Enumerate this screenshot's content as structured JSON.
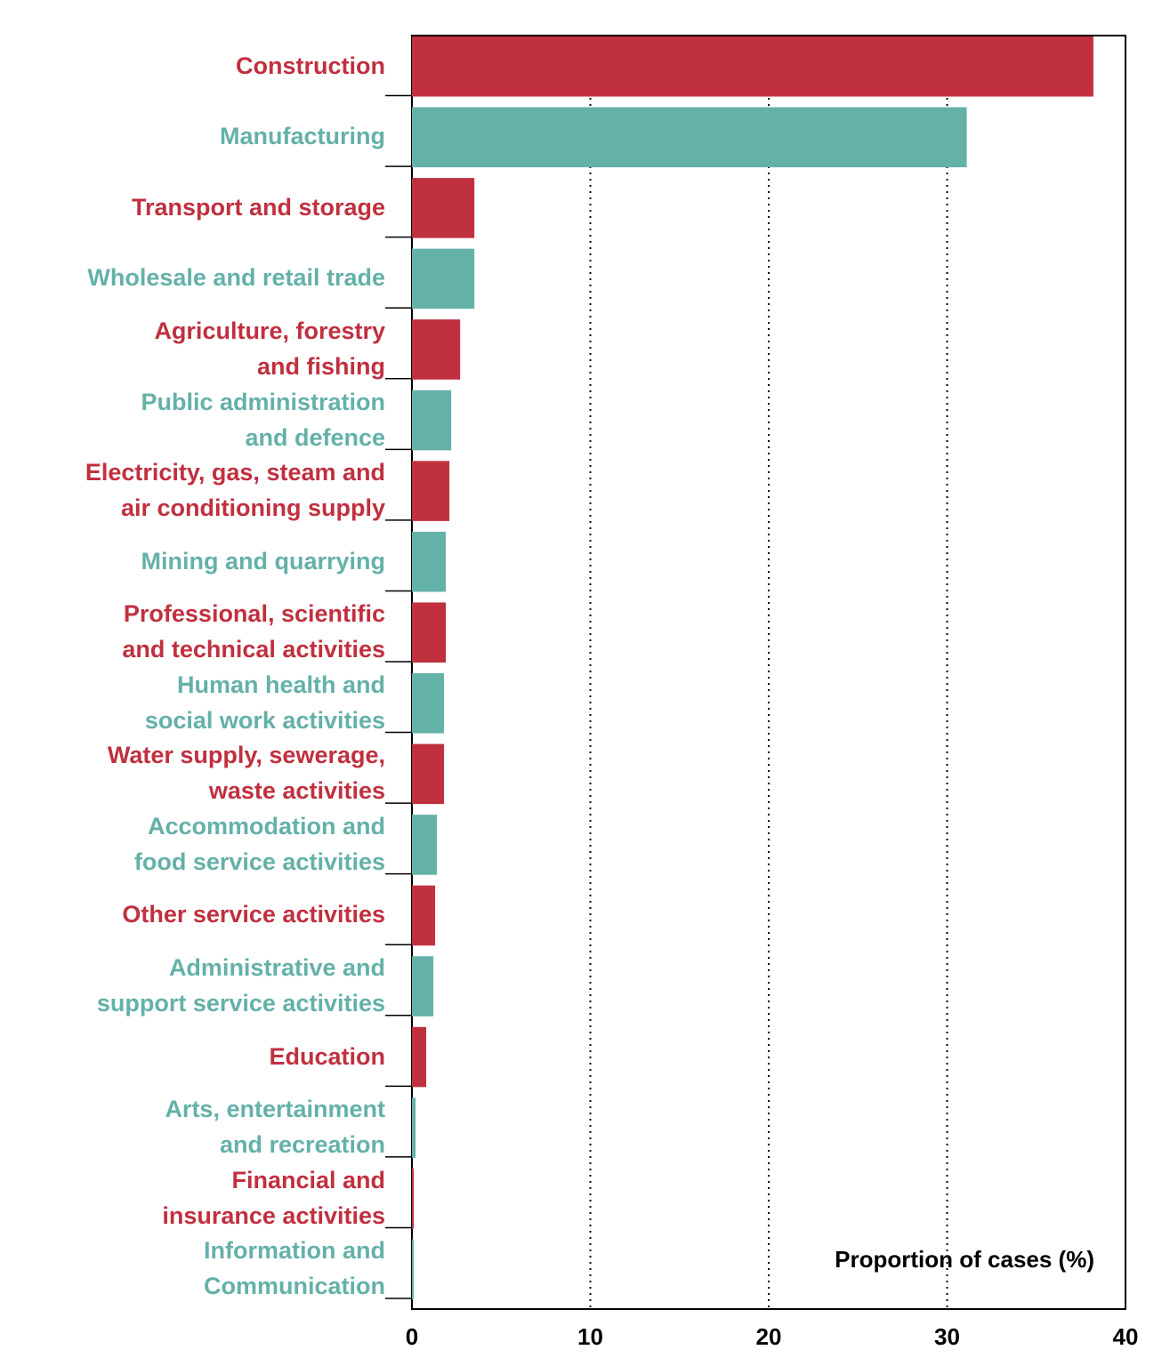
{
  "chart_data": {
    "type": "hbar",
    "categories": [
      "Construction",
      "Manufacturing",
      "Transport and storage",
      "Wholesale and retail trade",
      "Agriculture, forestry\nand fishing",
      "Public administration\nand defence",
      "Electricity, gas, steam and\nair conditioning supply",
      "Mining and quarrying",
      "Professional, scientific\nand technical activities",
      "Human health and\nsocial work activities",
      "Water supply, sewerage,\nwaste activities",
      "Accommodation and\nfood service activities",
      "Other service activities",
      "Administrative and\nsupport service activities",
      "Education",
      "Arts, entertainment\nand recreation",
      "Financial and\ninsurance activities",
      "Information and\nCommunication"
    ],
    "values": [
      38.2,
      31.1,
      3.5,
      3.5,
      2.7,
      2.2,
      2.1,
      1.9,
      1.9,
      1.8,
      1.8,
      1.4,
      1.3,
      1.2,
      0.8,
      0.2,
      0.1,
      0.1
    ],
    "colors": [
      "#c0303f",
      "#64b1a8",
      "#c0303f",
      "#64b1a8",
      "#c0303f",
      "#64b1a8",
      "#c0303f",
      "#64b1a8",
      "#c0303f",
      "#64b1a8",
      "#c0303f",
      "#64b1a8",
      "#c0303f",
      "#64b1a8",
      "#c0303f",
      "#64b1a8",
      "#c0303f",
      "#64b1a8"
    ],
    "x_label": "Proportion of cases (%)",
    "xlim": [
      0,
      40
    ],
    "xticks": [
      0,
      10,
      20,
      30,
      40
    ],
    "grid": true
  }
}
